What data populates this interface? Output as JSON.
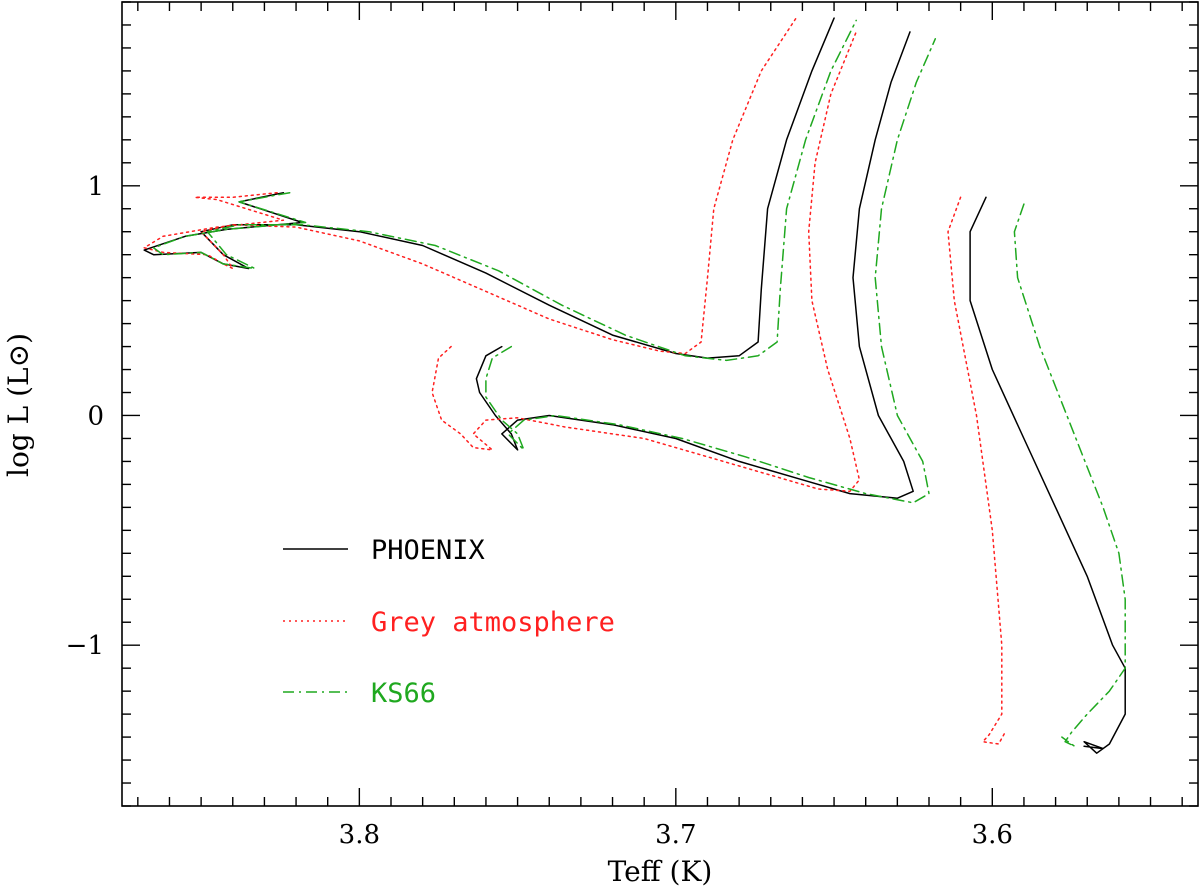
{
  "chart_data": {
    "type": "line",
    "xlabel": "Teff (K)",
    "ylabel": "log L (L⊙)",
    "xlim": [
      3.875,
      3.535
    ],
    "ylim": [
      -1.7,
      1.8
    ],
    "x_reversed": true,
    "xticks": [
      3.8,
      3.7,
      3.6
    ],
    "xtick_labels": [
      "3.8",
      "3.7",
      "3.6"
    ],
    "yticks": [
      -1,
      0,
      1
    ],
    "ytick_labels": [
      "−1",
      "0",
      "1"
    ],
    "grid": false,
    "legend_position": "lower-left",
    "series": [
      {
        "name": "PHOENIX",
        "color": "#000000",
        "style": "solid",
        "tracks": [
          [
            [
              3.824,
              0.97
            ],
            [
              3.838,
              0.93
            ],
            [
              3.818,
              0.84
            ],
            [
              3.842,
              0.81
            ],
            [
              3.855,
              0.78
            ],
            [
              3.868,
              0.72
            ],
            [
              3.865,
              0.7
            ],
            [
              3.85,
              0.71
            ],
            [
              3.843,
              0.66
            ],
            [
              3.835,
              0.64
            ],
            [
              3.843,
              0.7
            ],
            [
              3.85,
              0.8
            ],
            [
              3.84,
              0.83
            ],
            [
              3.82,
              0.83
            ],
            [
              3.8,
              0.8
            ],
            [
              3.78,
              0.74
            ],
            [
              3.76,
              0.62
            ],
            [
              3.74,
              0.48
            ],
            [
              3.72,
              0.35
            ],
            [
              3.7,
              0.27
            ],
            [
              3.69,
              0.25
            ],
            [
              3.68,
              0.26
            ],
            [
              3.674,
              0.32
            ],
            [
              3.673,
              0.55
            ],
            [
              3.671,
              0.9
            ],
            [
              3.665,
              1.2
            ],
            [
              3.657,
              1.5
            ],
            [
              3.65,
              1.73
            ]
          ],
          [
            [
              3.755,
              0.3
            ],
            [
              3.76,
              0.26
            ],
            [
              3.763,
              0.16
            ],
            [
              3.762,
              0.1
            ],
            [
              3.757,
              0.0
            ],
            [
              3.752,
              -0.08
            ],
            [
              3.75,
              -0.15
            ],
            [
              3.755,
              -0.08
            ],
            [
              3.75,
              -0.02
            ],
            [
              3.74,
              0.0
            ],
            [
              3.72,
              -0.04
            ],
            [
              3.7,
              -0.1
            ],
            [
              3.68,
              -0.2
            ],
            [
              3.66,
              -0.28
            ],
            [
              3.645,
              -0.34
            ],
            [
              3.63,
              -0.36
            ],
            [
              3.625,
              -0.33
            ],
            [
              3.628,
              -0.2
            ],
            [
              3.636,
              0.0
            ],
            [
              3.642,
              0.3
            ],
            [
              3.644,
              0.6
            ],
            [
              3.642,
              0.9
            ],
            [
              3.637,
              1.2
            ],
            [
              3.632,
              1.45
            ],
            [
              3.626,
              1.67
            ]
          ],
          [
            [
              3.602,
              0.95
            ],
            [
              3.607,
              0.8
            ],
            [
              3.607,
              0.5
            ],
            [
              3.6,
              0.2
            ],
            [
              3.59,
              -0.1
            ],
            [
              3.58,
              -0.4
            ],
            [
              3.57,
              -0.7
            ],
            [
              3.562,
              -1.0
            ],
            [
              3.558,
              -1.1
            ],
            [
              3.558,
              -1.3
            ],
            [
              3.563,
              -1.43
            ],
            [
              3.567,
              -1.47
            ],
            [
              3.571,
              -1.42
            ],
            [
              3.565,
              -1.45
            ],
            [
              3.571,
              -1.44
            ]
          ]
        ]
      },
      {
        "name": "Grey atmosphere",
        "color": "#ff2020",
        "style": "dotted",
        "tracks": [
          [
            [
              3.826,
              0.97
            ],
            [
              3.84,
              0.95
            ],
            [
              3.852,
              0.95
            ],
            [
              3.845,
              0.94
            ],
            [
              3.824,
              0.85
            ],
            [
              3.845,
              0.82
            ],
            [
              3.862,
              0.78
            ],
            [
              3.868,
              0.73
            ],
            [
              3.862,
              0.71
            ],
            [
              3.848,
              0.7
            ],
            [
              3.843,
              0.66
            ],
            [
              3.84,
              0.64
            ],
            [
              3.843,
              0.7
            ],
            [
              3.85,
              0.8
            ],
            [
              3.84,
              0.83
            ],
            [
              3.82,
              0.82
            ],
            [
              3.8,
              0.76
            ],
            [
              3.78,
              0.66
            ],
            [
              3.76,
              0.54
            ],
            [
              3.74,
              0.42
            ],
            [
              3.72,
              0.33
            ],
            [
              3.705,
              0.28
            ],
            [
              3.697,
              0.27
            ],
            [
              3.692,
              0.32
            ],
            [
              3.69,
              0.6
            ],
            [
              3.688,
              0.9
            ],
            [
              3.682,
              1.2
            ],
            [
              3.673,
              1.5
            ],
            [
              3.662,
              1.73
            ]
          ],
          [
            [
              3.771,
              0.3
            ],
            [
              3.775,
              0.25
            ],
            [
              3.777,
              0.1
            ],
            [
              3.774,
              -0.02
            ],
            [
              3.768,
              -0.08
            ],
            [
              3.764,
              -0.14
            ],
            [
              3.758,
              -0.15
            ],
            [
              3.764,
              -0.08
            ],
            [
              3.76,
              -0.02
            ],
            [
              3.75,
              -0.01
            ],
            [
              3.735,
              -0.05
            ],
            [
              3.71,
              -0.1
            ],
            [
              3.69,
              -0.18
            ],
            [
              3.67,
              -0.26
            ],
            [
              3.655,
              -0.32
            ],
            [
              3.645,
              -0.33
            ],
            [
              3.642,
              -0.28
            ],
            [
              3.645,
              -0.1
            ],
            [
              3.652,
              0.2
            ],
            [
              3.657,
              0.5
            ],
            [
              3.658,
              0.8
            ],
            [
              3.656,
              1.1
            ],
            [
              3.651,
              1.4
            ],
            [
              3.643,
              1.67
            ]
          ],
          [
            [
              3.61,
              0.95
            ],
            [
              3.614,
              0.8
            ],
            [
              3.612,
              0.5
            ],
            [
              3.605,
              0.0
            ],
            [
              3.6,
              -0.5
            ],
            [
              3.597,
              -1.0
            ],
            [
              3.597,
              -1.3
            ],
            [
              3.601,
              -1.39
            ],
            [
              3.603,
              -1.42
            ],
            [
              3.598,
              -1.43
            ],
            [
              3.596,
              -1.38
            ]
          ]
        ]
      },
      {
        "name": "KS66",
        "color": "#1fa81f",
        "style": "dashdot",
        "tracks": [
          [
            [
              3.822,
              0.97
            ],
            [
              3.838,
              0.93
            ],
            [
              3.817,
              0.84
            ],
            [
              3.842,
              0.81
            ],
            [
              3.855,
              0.78
            ],
            [
              3.865,
              0.73
            ],
            [
              3.862,
              0.7
            ],
            [
              3.85,
              0.71
            ],
            [
              3.843,
              0.66
            ],
            [
              3.833,
              0.64
            ],
            [
              3.842,
              0.7
            ],
            [
              3.848,
              0.8
            ],
            [
              3.838,
              0.83
            ],
            [
              3.818,
              0.83
            ],
            [
              3.797,
              0.8
            ],
            [
              3.776,
              0.74
            ],
            [
              3.756,
              0.63
            ],
            [
              3.736,
              0.48
            ],
            [
              3.716,
              0.35
            ],
            [
              3.697,
              0.26
            ],
            [
              3.684,
              0.24
            ],
            [
              3.674,
              0.26
            ],
            [
              3.668,
              0.32
            ],
            [
              3.667,
              0.55
            ],
            [
              3.665,
              0.9
            ],
            [
              3.659,
              1.2
            ],
            [
              3.651,
              1.5
            ],
            [
              3.643,
              1.72
            ]
          ],
          [
            [
              3.752,
              0.3
            ],
            [
              3.758,
              0.25
            ],
            [
              3.76,
              0.16
            ],
            [
              3.76,
              0.08
            ],
            [
              3.755,
              -0.02
            ],
            [
              3.75,
              -0.08
            ],
            [
              3.748,
              -0.15
            ],
            [
              3.753,
              -0.08
            ],
            [
              3.748,
              -0.02
            ],
            [
              3.738,
              0.0
            ],
            [
              3.718,
              -0.04
            ],
            [
              3.698,
              -0.1
            ],
            [
              3.678,
              -0.18
            ],
            [
              3.658,
              -0.27
            ],
            [
              3.64,
              -0.34
            ],
            [
              3.625,
              -0.38
            ],
            [
              3.62,
              -0.34
            ],
            [
              3.622,
              -0.2
            ],
            [
              3.63,
              0.0
            ],
            [
              3.635,
              0.3
            ],
            [
              3.637,
              0.6
            ],
            [
              3.635,
              0.9
            ],
            [
              3.63,
              1.2
            ],
            [
              3.624,
              1.45
            ],
            [
              3.618,
              1.64
            ]
          ],
          [
            [
              3.59,
              0.92
            ],
            [
              3.593,
              0.8
            ],
            [
              3.592,
              0.6
            ],
            [
              3.585,
              0.3
            ],
            [
              3.575,
              -0.05
            ],
            [
              3.565,
              -0.4
            ],
            [
              3.56,
              -0.6
            ],
            [
              3.558,
              -0.8
            ],
            [
              3.558,
              -1.0
            ],
            [
              3.558,
              -1.1
            ],
            [
              3.563,
              -1.2
            ],
            [
              3.57,
              -1.3
            ],
            [
              3.575,
              -1.38
            ],
            [
              3.577,
              -1.42
            ],
            [
              3.574,
              -1.44
            ],
            [
              3.578,
              -1.4
            ]
          ]
        ]
      }
    ]
  },
  "legend": {
    "items": [
      {
        "label": "PHOENIX",
        "color": "#000000",
        "style": "solid"
      },
      {
        "label": "Grey atmosphere",
        "color": "#ff2020",
        "style": "dotted"
      },
      {
        "label": "KS66",
        "color": "#1fa81f",
        "style": "dashdot"
      }
    ]
  }
}
